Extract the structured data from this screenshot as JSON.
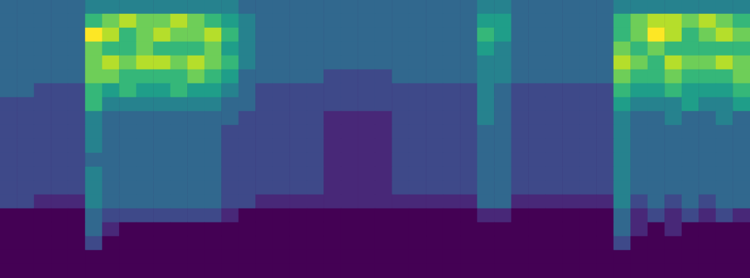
{
  "chart_data": {
    "type": "heatmap",
    "tick_labels": false,
    "zlim": [
      0,
      9
    ],
    "z": [
      [
        3,
        3,
        3,
        3,
        3,
        4,
        4,
        4,
        4,
        4,
        4,
        4,
        4,
        4,
        3,
        3,
        3,
        3,
        3,
        3,
        3,
        3,
        3,
        3,
        3,
        3,
        3,
        3,
        4,
        4,
        3,
        3,
        3,
        3,
        3,
        3,
        4,
        4,
        4,
        4,
        4,
        4,
        4,
        4
      ],
      [
        3,
        3,
        3,
        3,
        3,
        6,
        7,
        8,
        7,
        7,
        8,
        7,
        6,
        5,
        4,
        3,
        3,
        3,
        3,
        3,
        3,
        3,
        3,
        3,
        3,
        3,
        3,
        3,
        5,
        5,
        3,
        3,
        3,
        3,
        3,
        3,
        6,
        7,
        8,
        8,
        7,
        8,
        7,
        6
      ],
      [
        3,
        3,
        3,
        3,
        3,
        9,
        8,
        6,
        7,
        8,
        7,
        7,
        8,
        6,
        4,
        3,
        3,
        3,
        3,
        3,
        3,
        3,
        3,
        3,
        3,
        3,
        3,
        3,
        6,
        5,
        3,
        3,
        3,
        3,
        3,
        3,
        6,
        7,
        9,
        8,
        6,
        7,
        8,
        7
      ],
      [
        3,
        3,
        3,
        3,
        3,
        7,
        6,
        6,
        7,
        6,
        6,
        6,
        7,
        5,
        4,
        3,
        3,
        3,
        3,
        3,
        3,
        3,
        3,
        3,
        3,
        3,
        3,
        3,
        5,
        4,
        3,
        3,
        3,
        3,
        3,
        3,
        7,
        6,
        7,
        6,
        6,
        6,
        6,
        6
      ],
      [
        3,
        3,
        3,
        3,
        3,
        7,
        8,
        7,
        8,
        8,
        7,
        8,
        7,
        6,
        4,
        3,
        3,
        3,
        3,
        3,
        3,
        3,
        3,
        3,
        3,
        3,
        3,
        3,
        4,
        4,
        3,
        3,
        3,
        3,
        3,
        3,
        8,
        7,
        6,
        8,
        7,
        7,
        8,
        7
      ],
      [
        3,
        3,
        3,
        3,
        3,
        7,
        7,
        6,
        6,
        6,
        6,
        7,
        6,
        5,
        3,
        3,
        3,
        3,
        3,
        2,
        2,
        2,
        2,
        3,
        3,
        3,
        3,
        3,
        4,
        4,
        3,
        3,
        3,
        3,
        3,
        3,
        7,
        6,
        6,
        7,
        6,
        6,
        6,
        7
      ],
      [
        3,
        3,
        2,
        2,
        2,
        6,
        5,
        6,
        5,
        5,
        6,
        5,
        5,
        4,
        3,
        2,
        2,
        2,
        2,
        2,
        2,
        2,
        2,
        2,
        2,
        2,
        2,
        2,
        4,
        3,
        2,
        2,
        2,
        2,
        2,
        2,
        6,
        5,
        5,
        6,
        5,
        5,
        5,
        6
      ],
      [
        2,
        2,
        2,
        2,
        2,
        6,
        4,
        4,
        4,
        4,
        4,
        4,
        4,
        3,
        3,
        2,
        2,
        2,
        2,
        2,
        2,
        2,
        2,
        2,
        2,
        2,
        2,
        2,
        4,
        3,
        2,
        2,
        2,
        2,
        2,
        2,
        5,
        4,
        4,
        4,
        5,
        4,
        4,
        5
      ],
      [
        2,
        2,
        2,
        2,
        2,
        4,
        3,
        3,
        3,
        3,
        3,
        3,
        3,
        3,
        2,
        2,
        2,
        2,
        2,
        1,
        1,
        1,
        1,
        2,
        2,
        2,
        2,
        2,
        4,
        3,
        2,
        2,
        2,
        2,
        2,
        2,
        4,
        3,
        3,
        4,
        3,
        3,
        4,
        3
      ],
      [
        2,
        2,
        2,
        2,
        2,
        4,
        3,
        3,
        3,
        3,
        3,
        3,
        3,
        2,
        2,
        2,
        2,
        2,
        2,
        1,
        1,
        1,
        1,
        2,
        2,
        2,
        2,
        2,
        3,
        3,
        2,
        2,
        2,
        2,
        2,
        2,
        4,
        3,
        3,
        3,
        3,
        3,
        3,
        3
      ],
      [
        2,
        2,
        2,
        2,
        2,
        4,
        3,
        3,
        3,
        3,
        3,
        3,
        3,
        2,
        2,
        2,
        2,
        2,
        2,
        1,
        1,
        1,
        1,
        2,
        2,
        2,
        2,
        2,
        3,
        3,
        2,
        2,
        2,
        2,
        2,
        2,
        4,
        3,
        3,
        3,
        3,
        3,
        3,
        3
      ],
      [
        2,
        2,
        2,
        2,
        2,
        3,
        3,
        3,
        3,
        3,
        3,
        3,
        3,
        2,
        2,
        2,
        2,
        2,
        2,
        1,
        1,
        1,
        1,
        2,
        2,
        2,
        2,
        2,
        3,
        3,
        2,
        2,
        2,
        2,
        2,
        2,
        4,
        3,
        3,
        3,
        3,
        3,
        3,
        3
      ],
      [
        2,
        2,
        2,
        2,
        2,
        4,
        3,
        3,
        3,
        3,
        3,
        3,
        3,
        2,
        2,
        2,
        2,
        2,
        2,
        1,
        1,
        1,
        1,
        2,
        2,
        2,
        2,
        2,
        3,
        3,
        2,
        2,
        2,
        2,
        2,
        2,
        4,
        3,
        3,
        3,
        3,
        3,
        3,
        3
      ],
      [
        2,
        2,
        2,
        2,
        2,
        4,
        3,
        3,
        3,
        3,
        3,
        3,
        3,
        2,
        2,
        2,
        2,
        2,
        2,
        1,
        1,
        1,
        1,
        2,
        2,
        2,
        2,
        2,
        3,
        3,
        2,
        2,
        2,
        2,
        2,
        2,
        4,
        3,
        3,
        3,
        3,
        3,
        3,
        3
      ],
      [
        2,
        2,
        1,
        1,
        1,
        4,
        3,
        3,
        3,
        3,
        3,
        3,
        3,
        2,
        2,
        1,
        1,
        1,
        1,
        1,
        1,
        1,
        1,
        1,
        1,
        1,
        1,
        1,
        3,
        3,
        1,
        1,
        1,
        1,
        1,
        1,
        4,
        2,
        3,
        2,
        3,
        2,
        3,
        3
      ],
      [
        0,
        0,
        0,
        0,
        0,
        3,
        2,
        2,
        2,
        2,
        2,
        2,
        2,
        1,
        0,
        0,
        0,
        0,
        0,
        0,
        0,
        0,
        0,
        0,
        0,
        0,
        0,
        0,
        1,
        1,
        0,
        0,
        0,
        0,
        0,
        0,
        3,
        1,
        2,
        1,
        2,
        1,
        2,
        1
      ],
      [
        0,
        0,
        0,
        0,
        0,
        3,
        1,
        0,
        0,
        0,
        0,
        0,
        0,
        0,
        0,
        0,
        0,
        0,
        0,
        0,
        0,
        0,
        0,
        0,
        0,
        0,
        0,
        0,
        0,
        0,
        0,
        0,
        0,
        0,
        0,
        0,
        3,
        1,
        0,
        1,
        0,
        0,
        0,
        0
      ],
      [
        0,
        0,
        0,
        0,
        0,
        2,
        0,
        0,
        0,
        0,
        0,
        0,
        0,
        0,
        0,
        0,
        0,
        0,
        0,
        0,
        0,
        0,
        0,
        0,
        0,
        0,
        0,
        0,
        0,
        0,
        0,
        0,
        0,
        0,
        0,
        0,
        2,
        0,
        0,
        0,
        0,
        0,
        0,
        0
      ],
      [
        0,
        0,
        0,
        0,
        0,
        0,
        0,
        0,
        0,
        0,
        0,
        0,
        0,
        0,
        0,
        0,
        0,
        0,
        0,
        0,
        0,
        0,
        0,
        0,
        0,
        0,
        0,
        0,
        0,
        0,
        0,
        0,
        0,
        0,
        0,
        0,
        0,
        0,
        0,
        0,
        0,
        0,
        0,
        0
      ],
      [
        0,
        0,
        0,
        0,
        0,
        0,
        0,
        0,
        0,
        0,
        0,
        0,
        0,
        0,
        0,
        0,
        0,
        0,
        0,
        0,
        0,
        0,
        0,
        0,
        0,
        0,
        0,
        0,
        0,
        0,
        0,
        0,
        0,
        0,
        0,
        0,
        0,
        0,
        0,
        0,
        0,
        0,
        0,
        0
      ]
    ]
  }
}
